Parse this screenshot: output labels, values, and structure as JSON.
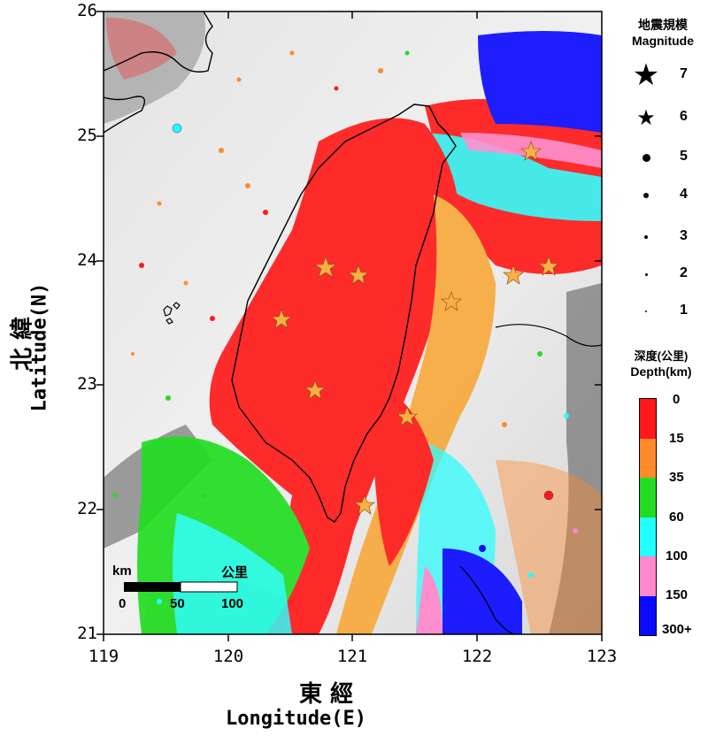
{
  "x_axis": {
    "ticks": [
      "119",
      "120",
      "121",
      "122",
      "123"
    ],
    "label_cjk": "東 經",
    "label_en": "Longitude(E)"
  },
  "y_axis": {
    "ticks": [
      "26",
      "25",
      "24",
      "23",
      "22",
      "21"
    ],
    "label_cjk": "北 緯",
    "label_en": "Latitude(N)"
  },
  "magnitude_legend": {
    "title_cjk": "地震規模",
    "title_en": "Magnitude",
    "items": [
      {
        "label": "7",
        "symbol": "star-large"
      },
      {
        "label": "6",
        "symbol": "star-small"
      },
      {
        "label": "5",
        "symbol": "dot-5"
      },
      {
        "label": "4",
        "symbol": "dot-4"
      },
      {
        "label": "3",
        "symbol": "dot-3"
      },
      {
        "label": "2",
        "symbol": "dot-2"
      },
      {
        "label": "1",
        "symbol": "dot-1"
      }
    ]
  },
  "depth_legend": {
    "title_cjk": "深度(公里)",
    "title_en": "Depth(km)",
    "labels": [
      "0",
      "15",
      "35",
      "60",
      "100",
      "150",
      "300+"
    ],
    "colors": [
      "#ff1a1a",
      "#ff8a2a",
      "#22dd22",
      "#22ffff",
      "#ff88cc",
      "#0a0aff"
    ]
  },
  "scale_bar": {
    "unit_en": "km",
    "unit_cjk": "公里",
    "labels": [
      "0",
      "50",
      "100"
    ]
  }
}
